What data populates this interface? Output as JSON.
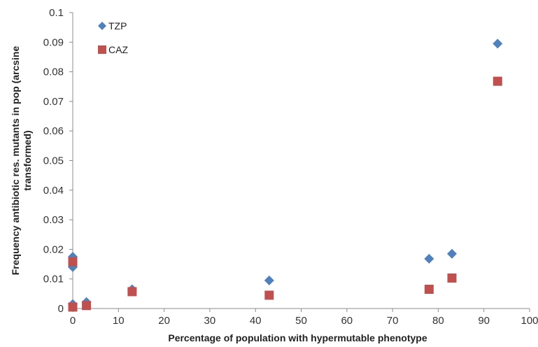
{
  "chart_data": {
    "type": "scatter",
    "title": "",
    "xlabel": "Percentage of population with hypermutable phenotype",
    "ylabel_lines": [
      "Frequency antibiotic res. mutants in pop (arcsine",
      "transformed)"
    ],
    "xlim": [
      0,
      100
    ],
    "ylim": [
      0,
      0.1
    ],
    "x_ticks": [
      0,
      10,
      20,
      30,
      40,
      50,
      60,
      70,
      80,
      90,
      100
    ],
    "y_ticks": [
      "0",
      "0.01",
      "0.02",
      "0.03",
      "0.04",
      "0.05",
      "0.06",
      "0.07",
      "0.08",
      "0.09",
      "0.1"
    ],
    "y_tick_values": [
      0,
      0.01,
      0.02,
      0.03,
      0.04,
      0.05,
      0.06,
      0.07,
      0.08,
      0.09,
      0.1
    ],
    "grid": false,
    "legend_position": "top-left",
    "series": [
      {
        "name": "TZP",
        "marker": "diamond",
        "color": "#4f81bd",
        "points": [
          {
            "x": 0,
            "y": 0.0175
          },
          {
            "x": 0,
            "y": 0.014
          },
          {
            "x": 0,
            "y": 0.0015
          },
          {
            "x": 3,
            "y": 0.0022
          },
          {
            "x": 13,
            "y": 0.0065
          },
          {
            "x": 43,
            "y": 0.0095
          },
          {
            "x": 78,
            "y": 0.0168
          },
          {
            "x": 83,
            "y": 0.0185
          },
          {
            "x": 93,
            "y": 0.0895
          }
        ]
      },
      {
        "name": "CAZ",
        "marker": "square",
        "color": "#c0504d",
        "points": [
          {
            "x": 0,
            "y": 0.0158
          },
          {
            "x": 0,
            "y": 0.0005
          },
          {
            "x": 3,
            "y": 0.001
          },
          {
            "x": 13,
            "y": 0.0057
          },
          {
            "x": 43,
            "y": 0.0045
          },
          {
            "x": 78,
            "y": 0.0065
          },
          {
            "x": 83,
            "y": 0.0103
          },
          {
            "x": 93,
            "y": 0.0768
          }
        ]
      }
    ]
  }
}
